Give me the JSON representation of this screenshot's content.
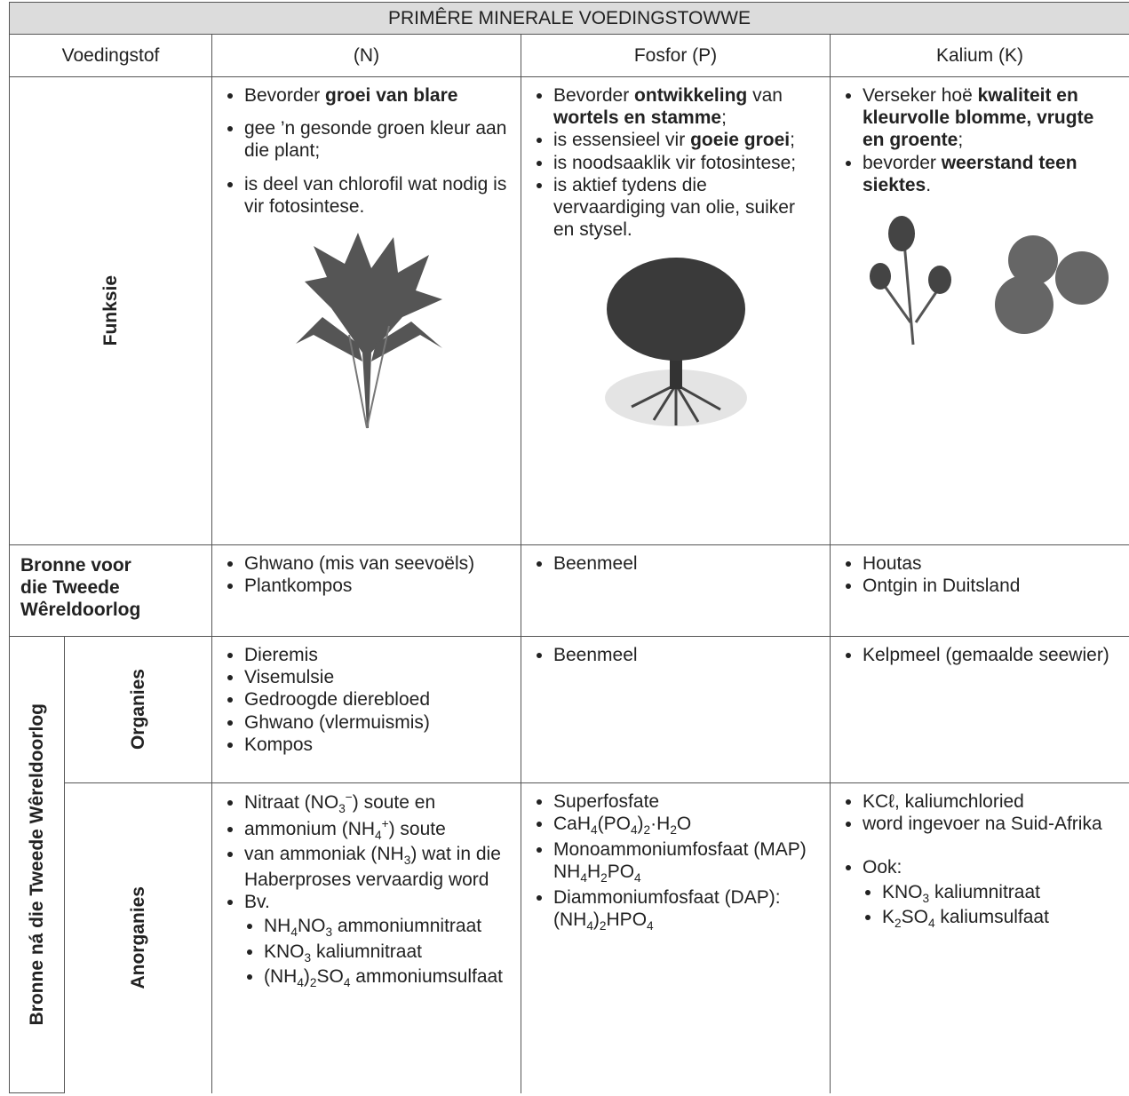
{
  "table": {
    "title": "PRIMÊRE MINERALE VOEDINGSTOWWE",
    "header": [
      "Voedingstof",
      "(N)",
      "Fosfor (P)",
      "Kalium (K)"
    ],
    "rows": [
      {
        "label": "Funksie",
        "cells": [
          [
            {
              "runs": [
                "Bevorder ",
                {
                  "b": "groei van blare"
                }
              ]
            },
            {
              "runs": [
                "gee ’n gesonde groen kleur aan die plant;"
              ]
            },
            {
              "runs": [
                "is deel van chlorofil wat nodig is vir fotosintese."
              ]
            }
          ],
          [
            {
              "runs": [
                "Bevorder ",
                {
                  "b": "ontwikkeling"
                },
                " van ",
                {
                  "b": "wortels en stamme"
                },
                ";"
              ]
            },
            {
              "runs": [
                "is essensieel vir ",
                {
                  "b": "goeie groei"
                },
                ";"
              ]
            },
            {
              "runs": [
                "is noodsaaklik vir fotosintese;"
              ]
            },
            {
              "runs": [
                "is aktief tydens die vervaardiging van olie, suiker en stysel."
              ]
            }
          ],
          [
            {
              "runs": [
                "Verseker hoë ",
                {
                  "b": "kwaliteit en kleurvolle blomme, vrugte en groente"
                },
                ";"
              ]
            },
            {
              "runs": [
                "bevorder ",
                {
                  "b": "weerstand teen siektes"
                },
                "."
              ]
            }
          ]
        ]
      },
      {
        "label": "Bronne voor die Tweede Wêreldoorlog",
        "cells": [
          [
            {
              "runs": [
                "Ghwano (mis van seevoëls)"
              ]
            },
            {
              "runs": [
                "Plantkompos"
              ]
            }
          ],
          [
            {
              "runs": [
                "Beenmeel"
              ]
            }
          ],
          [
            {
              "runs": [
                "Houtas"
              ]
            },
            {
              "runs": [
                "Ontgin in Duitsland"
              ]
            }
          ]
        ]
      },
      {
        "group": "Bronne ná die Tweede Wêreldoorlog",
        "label": "Organies",
        "cells": [
          [
            {
              "runs": [
                "Dieremis"
              ]
            },
            {
              "runs": [
                "Visemulsie"
              ]
            },
            {
              "runs": [
                "Gedroogde dierebloed"
              ]
            },
            {
              "runs": [
                "Ghwano (vlermuismis)"
              ]
            },
            {
              "runs": [
                "Kompos"
              ]
            }
          ],
          [
            {
              "runs": [
                "Beenmeel"
              ]
            }
          ],
          [
            {
              "runs": [
                "Kelpmeel (gemaalde seewier)"
              ]
            }
          ]
        ]
      },
      {
        "label": "Anorganies",
        "cells": [
          [
            {
              "runs": [
                "Nitraat  (NO",
                {
                  "sub": "3"
                },
                {
                  "sup": "−"
                },
                ") soute en"
              ]
            },
            {
              "runs": [
                "ammonium  (NH",
                {
                  "sub": "4"
                },
                {
                  "sup": "+"
                },
                ") soute"
              ]
            },
            {
              "runs": [
                "van ammoniak (NH",
                {
                  "sub": "3"
                },
                ") wat in die Haberproses vervaardig word"
              ]
            },
            {
              "runs": [
                "Bv."
              ],
              "sub": [
                {
                  "runs": [
                    "NH",
                    {
                      "sub": "4"
                    },
                    "NO",
                    {
                      "sub": "3"
                    },
                    " ammoniumnitraat"
                  ]
                },
                {
                  "runs": [
                    "KNO",
                    {
                      "sub": "3"
                    },
                    " kaliumnitraat"
                  ]
                },
                {
                  "runs": [
                    "(NH",
                    {
                      "sub": "4"
                    },
                    ")",
                    {
                      "sub": "2"
                    },
                    "SO",
                    {
                      "sub": "4"
                    },
                    " ammoniumsulfaat"
                  ]
                }
              ]
            }
          ],
          [
            {
              "runs": [
                "Superfosfate"
              ]
            },
            {
              "runs": [
                "CaH",
                {
                  "sub": "4"
                },
                "(PO",
                {
                  "sub": "4"
                },
                ")",
                {
                  "sub": "2"
                },
                "·H",
                {
                  "sub": "2"
                },
                "O"
              ]
            },
            {
              "runs": [
                "Monoammoniumfosfaat (MAP)  NH",
                {
                  "sub": "4"
                },
                "H",
                {
                  "sub": "2"
                },
                "PO",
                {
                  "sub": "4"
                }
              ]
            },
            {
              "runs": [
                "Diammoniumfosfaat (DAP): (NH",
                {
                  "sub": "4"
                },
                ")",
                {
                  "sub": "2"
                },
                "HPO",
                {
                  "sub": "4"
                }
              ]
            }
          ],
          [
            {
              "runs": [
                "KCℓ, kaliumchloried"
              ]
            },
            {
              "runs": [
                "word ingevoer na Suid-Afrika"
              ]
            },
            {
              "runs": [
                "Ook:"
              ],
              "gap": true,
              "sub": [
                {
                  "runs": [
                    "KNO",
                    {
                      "sub": "3"
                    },
                    " kaliumnitraat"
                  ]
                },
                {
                  "runs": [
                    "K",
                    {
                      "sub": "2"
                    },
                    "SO",
                    {
                      "sub": "4"
                    },
                    " kaliumsulfaat"
                  ]
                }
              ]
            }
          ]
        ]
      }
    ]
  }
}
